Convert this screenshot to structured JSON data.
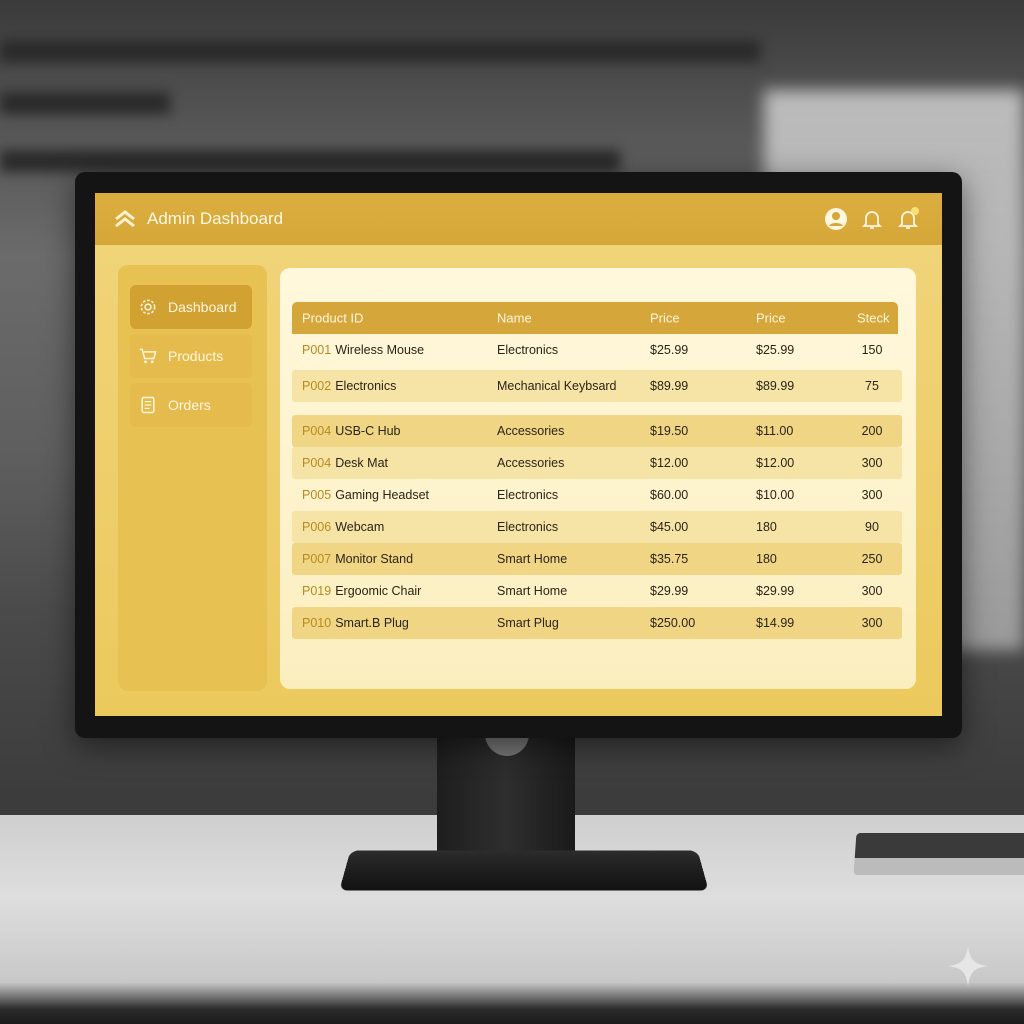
{
  "app": {
    "title": "Admin Dashboard",
    "accent": "#d5a63a"
  },
  "header_icons": [
    "user-avatar-icon",
    "bell-icon",
    "notification-bell-icon"
  ],
  "sidebar": {
    "items": [
      {
        "label": "Dashboard",
        "icon": "gear-icon",
        "active": true
      },
      {
        "label": "Products",
        "icon": "cart-icon",
        "active": false
      },
      {
        "label": "Orders",
        "icon": "document-icon",
        "active": false
      }
    ]
  },
  "table": {
    "columns": [
      "Product ID",
      "Name",
      "Price",
      "Price",
      "Steck"
    ],
    "rows": [
      {
        "id": "P001",
        "product": "Wireless Mouse",
        "name": "Electronics",
        "price1": "$25.99",
        "price2": "$25.99",
        "stock": "150"
      },
      {
        "id": "P002",
        "product": "Electronics",
        "name": "Mechanical Keybsard",
        "price1": "$89.99",
        "price2": "$89.99",
        "stock": "75"
      },
      {
        "id": "P004",
        "product": "USB-C Hub",
        "name": "Accessories",
        "price1": "$19.50",
        "price2": "$11.00",
        "stock": "200"
      },
      {
        "id": "P004",
        "product": "Desk Mat",
        "name": "Accessories",
        "price1": "$12.00",
        "price2": "$12.00",
        "stock": "300"
      },
      {
        "id": "P005",
        "product": "Gaming Headset",
        "name": "Electronics",
        "price1": "$60.00",
        "price2": "$10.00",
        "stock": "300"
      },
      {
        "id": "P006",
        "product": "Webcam",
        "name": "Electronics",
        "price1": "$45.00",
        "price2": "180",
        "stock": "90"
      },
      {
        "id": "P007",
        "product": "Monitor Stand",
        "name": "Smart Home",
        "price1": "$35.75",
        "price2": "180",
        "stock": "250"
      },
      {
        "id": "P019",
        "product": "Ergoomic Chair",
        "name": "Smart Home",
        "price1": "$29.99",
        "price2": "$29.99",
        "stock": "300"
      },
      {
        "id": "P010",
        "product": "Smart.B Plug",
        "name": "Smart Plug",
        "price1": "$250.00",
        "price2": "$14.99",
        "stock": "300"
      }
    ]
  }
}
